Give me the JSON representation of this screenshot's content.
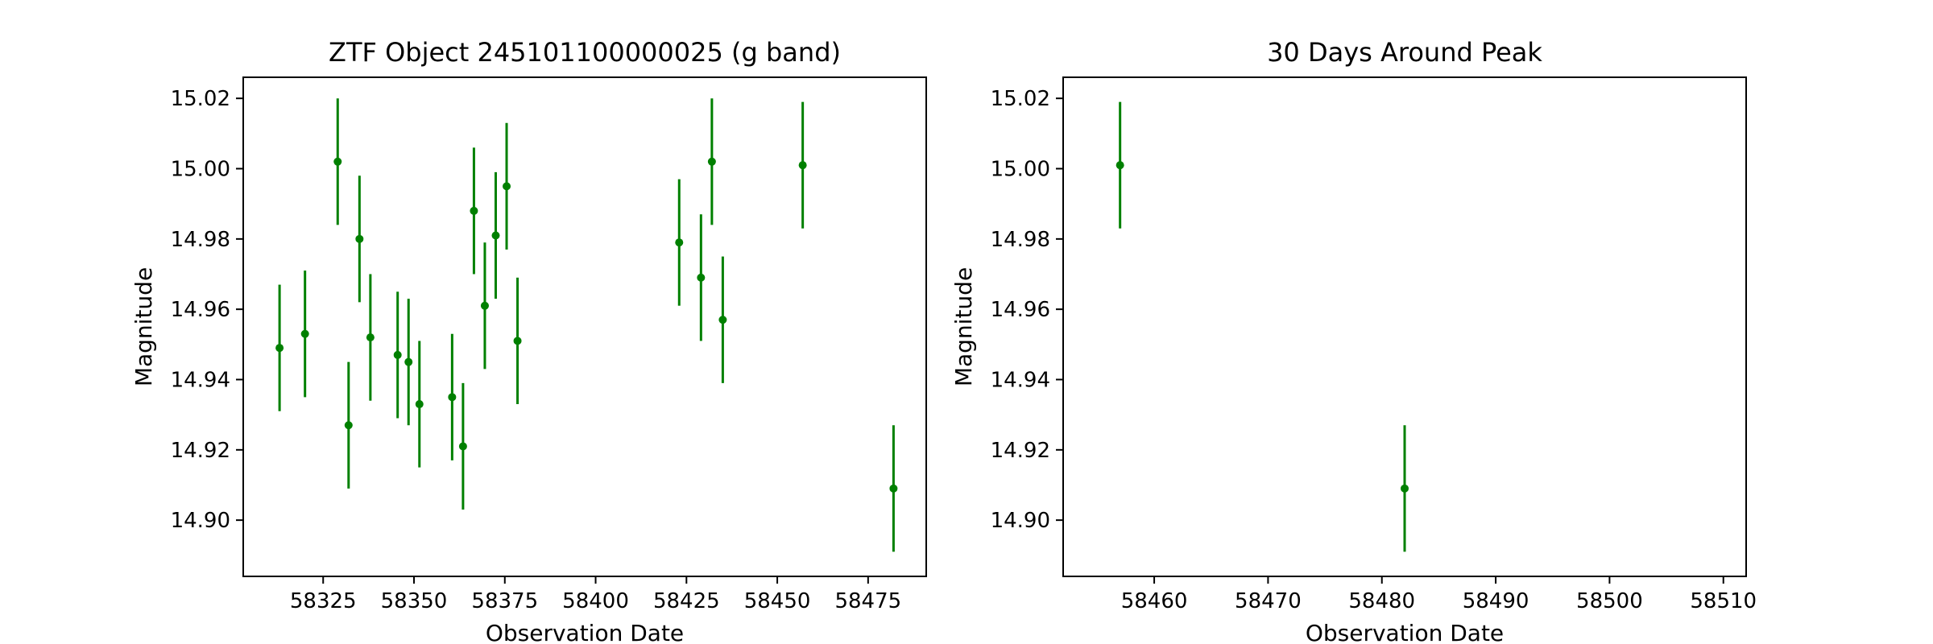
{
  "chart_data": [
    {
      "type": "scatter",
      "title": "ZTF Object 245101100000025 (g band)",
      "xlabel": "Observation Date",
      "ylabel": "Magnitude",
      "xlim": [
        58303,
        58491
      ],
      "ylim": [
        15.026,
        14.884
      ],
      "y_inverted": true,
      "grid": false,
      "xticks": [
        58325,
        58350,
        58375,
        58400,
        58425,
        58450,
        58475
      ],
      "xtick_labels": [
        "58325",
        "58350",
        "58375",
        "58400",
        "58425",
        "58450",
        "58475"
      ],
      "yticks": [
        14.9,
        14.92,
        14.94,
        14.96,
        14.98,
        15.0,
        15.02
      ],
      "ytick_labels": [
        "14.90",
        "14.92",
        "14.94",
        "14.96",
        "14.98",
        "15.00",
        "15.02"
      ],
      "color": "#008000",
      "points": [
        {
          "x": 58313.0,
          "y": 14.949,
          "err": 0.018
        },
        {
          "x": 58320.0,
          "y": 14.953,
          "err": 0.018
        },
        {
          "x": 58329.0,
          "y": 15.002,
          "err": 0.018
        },
        {
          "x": 58332.0,
          "y": 14.927,
          "err": 0.018
        },
        {
          "x": 58335.0,
          "y": 14.98,
          "err": 0.018
        },
        {
          "x": 58338.0,
          "y": 14.952,
          "err": 0.018
        },
        {
          "x": 58345.5,
          "y": 14.947,
          "err": 0.018
        },
        {
          "x": 58348.5,
          "y": 14.945,
          "err": 0.018
        },
        {
          "x": 58351.5,
          "y": 14.933,
          "err": 0.018
        },
        {
          "x": 58360.5,
          "y": 14.935,
          "err": 0.018
        },
        {
          "x": 58363.5,
          "y": 14.921,
          "err": 0.018
        },
        {
          "x": 58366.5,
          "y": 14.988,
          "err": 0.018
        },
        {
          "x": 58369.5,
          "y": 14.961,
          "err": 0.018
        },
        {
          "x": 58372.5,
          "y": 14.981,
          "err": 0.018
        },
        {
          "x": 58375.5,
          "y": 14.995,
          "err": 0.018
        },
        {
          "x": 58378.5,
          "y": 14.951,
          "err": 0.018
        },
        {
          "x": 58423.0,
          "y": 14.979,
          "err": 0.018
        },
        {
          "x": 58429.0,
          "y": 14.969,
          "err": 0.018
        },
        {
          "x": 58432.0,
          "y": 15.002,
          "err": 0.018
        },
        {
          "x": 58435.0,
          "y": 14.957,
          "err": 0.018
        },
        {
          "x": 58457.0,
          "y": 15.001,
          "err": 0.018
        },
        {
          "x": 58482.0,
          "y": 14.909,
          "err": 0.018
        }
      ]
    },
    {
      "type": "scatter",
      "title": "30 Days Around Peak",
      "xlabel": "Observation Date",
      "ylabel": "Magnitude",
      "xlim": [
        58452,
        58512
      ],
      "ylim": [
        15.026,
        14.884
      ],
      "y_inverted": true,
      "grid": false,
      "xticks": [
        58460,
        58470,
        58480,
        58490,
        58500,
        58510
      ],
      "xtick_labels": [
        "58460",
        "58470",
        "58480",
        "58490",
        "58500",
        "58510"
      ],
      "yticks": [
        14.9,
        14.92,
        14.94,
        14.96,
        14.98,
        15.0,
        15.02
      ],
      "ytick_labels": [
        "14.90",
        "14.92",
        "14.94",
        "14.96",
        "14.98",
        "15.00",
        "15.02"
      ],
      "color": "#008000",
      "points": [
        {
          "x": 58457.0,
          "y": 15.001,
          "err": 0.018
        },
        {
          "x": 58482.0,
          "y": 14.909,
          "err": 0.018
        }
      ]
    }
  ]
}
